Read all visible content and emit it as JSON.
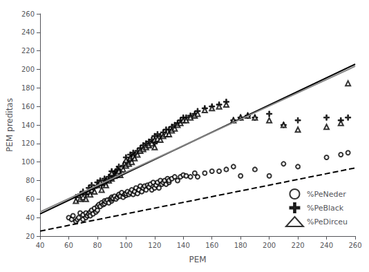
{
  "chart_data": {
    "type": "scatter",
    "xlabel": "PEM",
    "ylabel": "PEM preditas",
    "xlim": [
      40,
      260
    ],
    "ylim": [
      20,
      260
    ],
    "xticks": [
      40,
      60,
      80,
      100,
      120,
      140,
      160,
      180,
      200,
      220,
      240,
      260
    ],
    "yticks": [
      20,
      40,
      60,
      80,
      100,
      120,
      140,
      160,
      180,
      200,
      220,
      240,
      260
    ],
    "grid": false,
    "legend": "lower right",
    "series": [
      {
        "name": "%PeNeder",
        "type": "scatter",
        "marker": "circle",
        "color": "#000000",
        "x": [
          60,
          62,
          63,
          65,
          66,
          67,
          68,
          70,
          70,
          72,
          72,
          73,
          74,
          75,
          75,
          76,
          77,
          78,
          79,
          80,
          80,
          81,
          82,
          83,
          84,
          85,
          85,
          86,
          87,
          88,
          89,
          90,
          90,
          90,
          91,
          92,
          93,
          94,
          95,
          95,
          96,
          97,
          98,
          99,
          100,
          100,
          101,
          102,
          103,
          104,
          105,
          106,
          107,
          108,
          109,
          110,
          111,
          112,
          113,
          114,
          115,
          116,
          117,
          118,
          119,
          120,
          121,
          122,
          123,
          124,
          125,
          126,
          127,
          128,
          129,
          130,
          130,
          132,
          134,
          136,
          138,
          140,
          142,
          145,
          148,
          150,
          155,
          160,
          165,
          170,
          175,
          180,
          190,
          200,
          210,
          220,
          240,
          250,
          255
        ],
        "values": [
          40,
          38,
          42,
          36,
          38,
          40,
          45,
          38,
          43,
          40,
          45,
          42,
          44,
          46,
          42,
          48,
          44,
          50,
          46,
          52,
          48,
          54,
          52,
          56,
          54,
          55,
          58,
          57,
          59,
          56,
          60,
          58,
          60,
          62,
          61,
          63,
          60,
          62,
          64,
          65,
          63,
          67,
          62,
          65,
          64,
          66,
          68,
          65,
          67,
          70,
          65,
          68,
          72,
          66,
          70,
          74,
          68,
          72,
          74,
          70,
          75,
          73,
          76,
          70,
          78,
          72,
          75,
          78,
          72,
          80,
          76,
          78,
          80,
          76,
          82,
          78,
          80,
          82,
          84,
          80,
          84,
          86,
          85,
          84,
          88,
          84,
          88,
          90,
          90,
          92,
          95,
          85,
          92,
          85,
          98,
          95,
          105,
          108,
          110
        ]
      },
      {
        "name": "%PeBlack",
        "type": "scatter",
        "marker": "plus",
        "color": "#000000",
        "x": [
          65,
          68,
          70,
          72,
          74,
          75,
          76,
          78,
          80,
          82,
          83,
          85,
          86,
          88,
          90,
          90,
          92,
          93,
          94,
          95,
          96,
          98,
          100,
          100,
          102,
          103,
          104,
          105,
          106,
          108,
          110,
          112,
          114,
          116,
          118,
          120,
          120,
          122,
          124,
          126,
          128,
          130,
          132,
          134,
          136,
          138,
          140,
          142,
          145,
          148,
          150,
          155,
          160,
          165,
          170,
          175,
          180,
          185,
          190,
          200,
          210,
          220,
          240,
          250,
          255
        ],
        "values": [
          62,
          65,
          68,
          65,
          72,
          70,
          75,
          72,
          78,
          80,
          75,
          82,
          80,
          84,
          86,
          90,
          88,
          90,
          92,
          95,
          90,
          96,
          100,
          105,
          102,
          108,
          105,
          110,
          108,
          112,
          115,
          118,
          120,
          122,
          124,
          120,
          128,
          130,
          128,
          132,
          135,
          135,
          138,
          140,
          142,
          145,
          148,
          148,
          150,
          152,
          155,
          158,
          160,
          162,
          165,
          145,
          148,
          150,
          148,
          152,
          140,
          145,
          148,
          145,
          148
        ]
      },
      {
        "name": "%PeDirceu",
        "type": "scatter",
        "marker": "triangle",
        "color": "#000000",
        "x": [
          65,
          68,
          70,
          72,
          74,
          75,
          76,
          78,
          80,
          82,
          83,
          85,
          86,
          88,
          90,
          90,
          92,
          93,
          94,
          95,
          96,
          98,
          100,
          100,
          102,
          103,
          104,
          105,
          106,
          108,
          110,
          112,
          114,
          116,
          118,
          120,
          120,
          122,
          124,
          126,
          128,
          130,
          132,
          134,
          136,
          138,
          140,
          142,
          145,
          148,
          150,
          155,
          160,
          165,
          170,
          175,
          180,
          185,
          190,
          200,
          210,
          220,
          240,
          250,
          255
        ],
        "values": [
          58,
          60,
          62,
          60,
          68,
          65,
          70,
          68,
          75,
          78,
          70,
          78,
          75,
          80,
          82,
          88,
          85,
          86,
          88,
          90,
          86,
          92,
          96,
          102,
          98,
          104,
          100,
          106,
          104,
          108,
          112,
          114,
          116,
          118,
          120,
          116,
          124,
          125,
          124,
          128,
          130,
          130,
          134,
          136,
          140,
          142,
          145,
          145,
          148,
          150,
          152,
          156,
          158,
          160,
          162,
          145,
          148,
          150,
          148,
          145,
          140,
          135,
          138,
          142,
          185
        ]
      },
      {
        "name": "%PeBlack",
        "type": "line",
        "line_style": "solid",
        "color": "#000000",
        "x": [
          40,
          260
        ],
        "values": [
          43.9,
          205.6
        ]
      },
      {
        "name": "%PeDirceu",
        "type": "line",
        "line_style": "solid",
        "color": "#888888",
        "x": [
          40,
          260
        ],
        "values": [
          46.1,
          203.4
        ]
      },
      {
        "name": "%PeNeder",
        "type": "line",
        "line_style": "dashed",
        "color": "#000000",
        "x": [
          40,
          260
        ],
        "values": [
          25.4,
          93.6
        ]
      }
    ]
  }
}
